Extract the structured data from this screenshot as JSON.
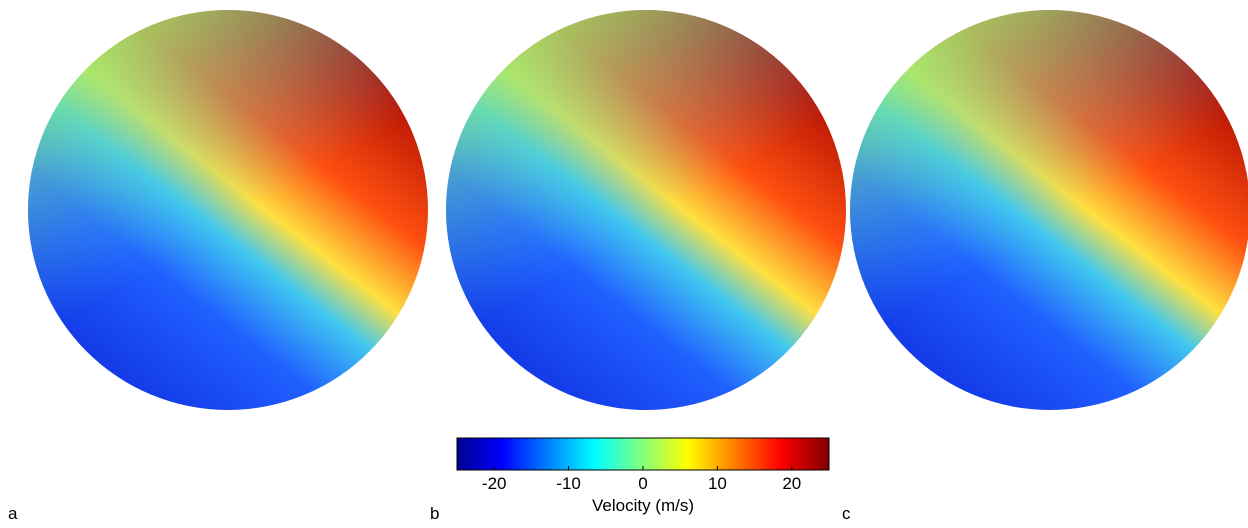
{
  "panels": [
    {
      "label": "a"
    },
    {
      "label": "b"
    },
    {
      "label": "c"
    }
  ],
  "colorbar": {
    "label": "Velocity (m/s)",
    "lim": [
      -25,
      25
    ],
    "ticks": [
      -20,
      -10,
      0,
      10,
      20
    ]
  }
}
